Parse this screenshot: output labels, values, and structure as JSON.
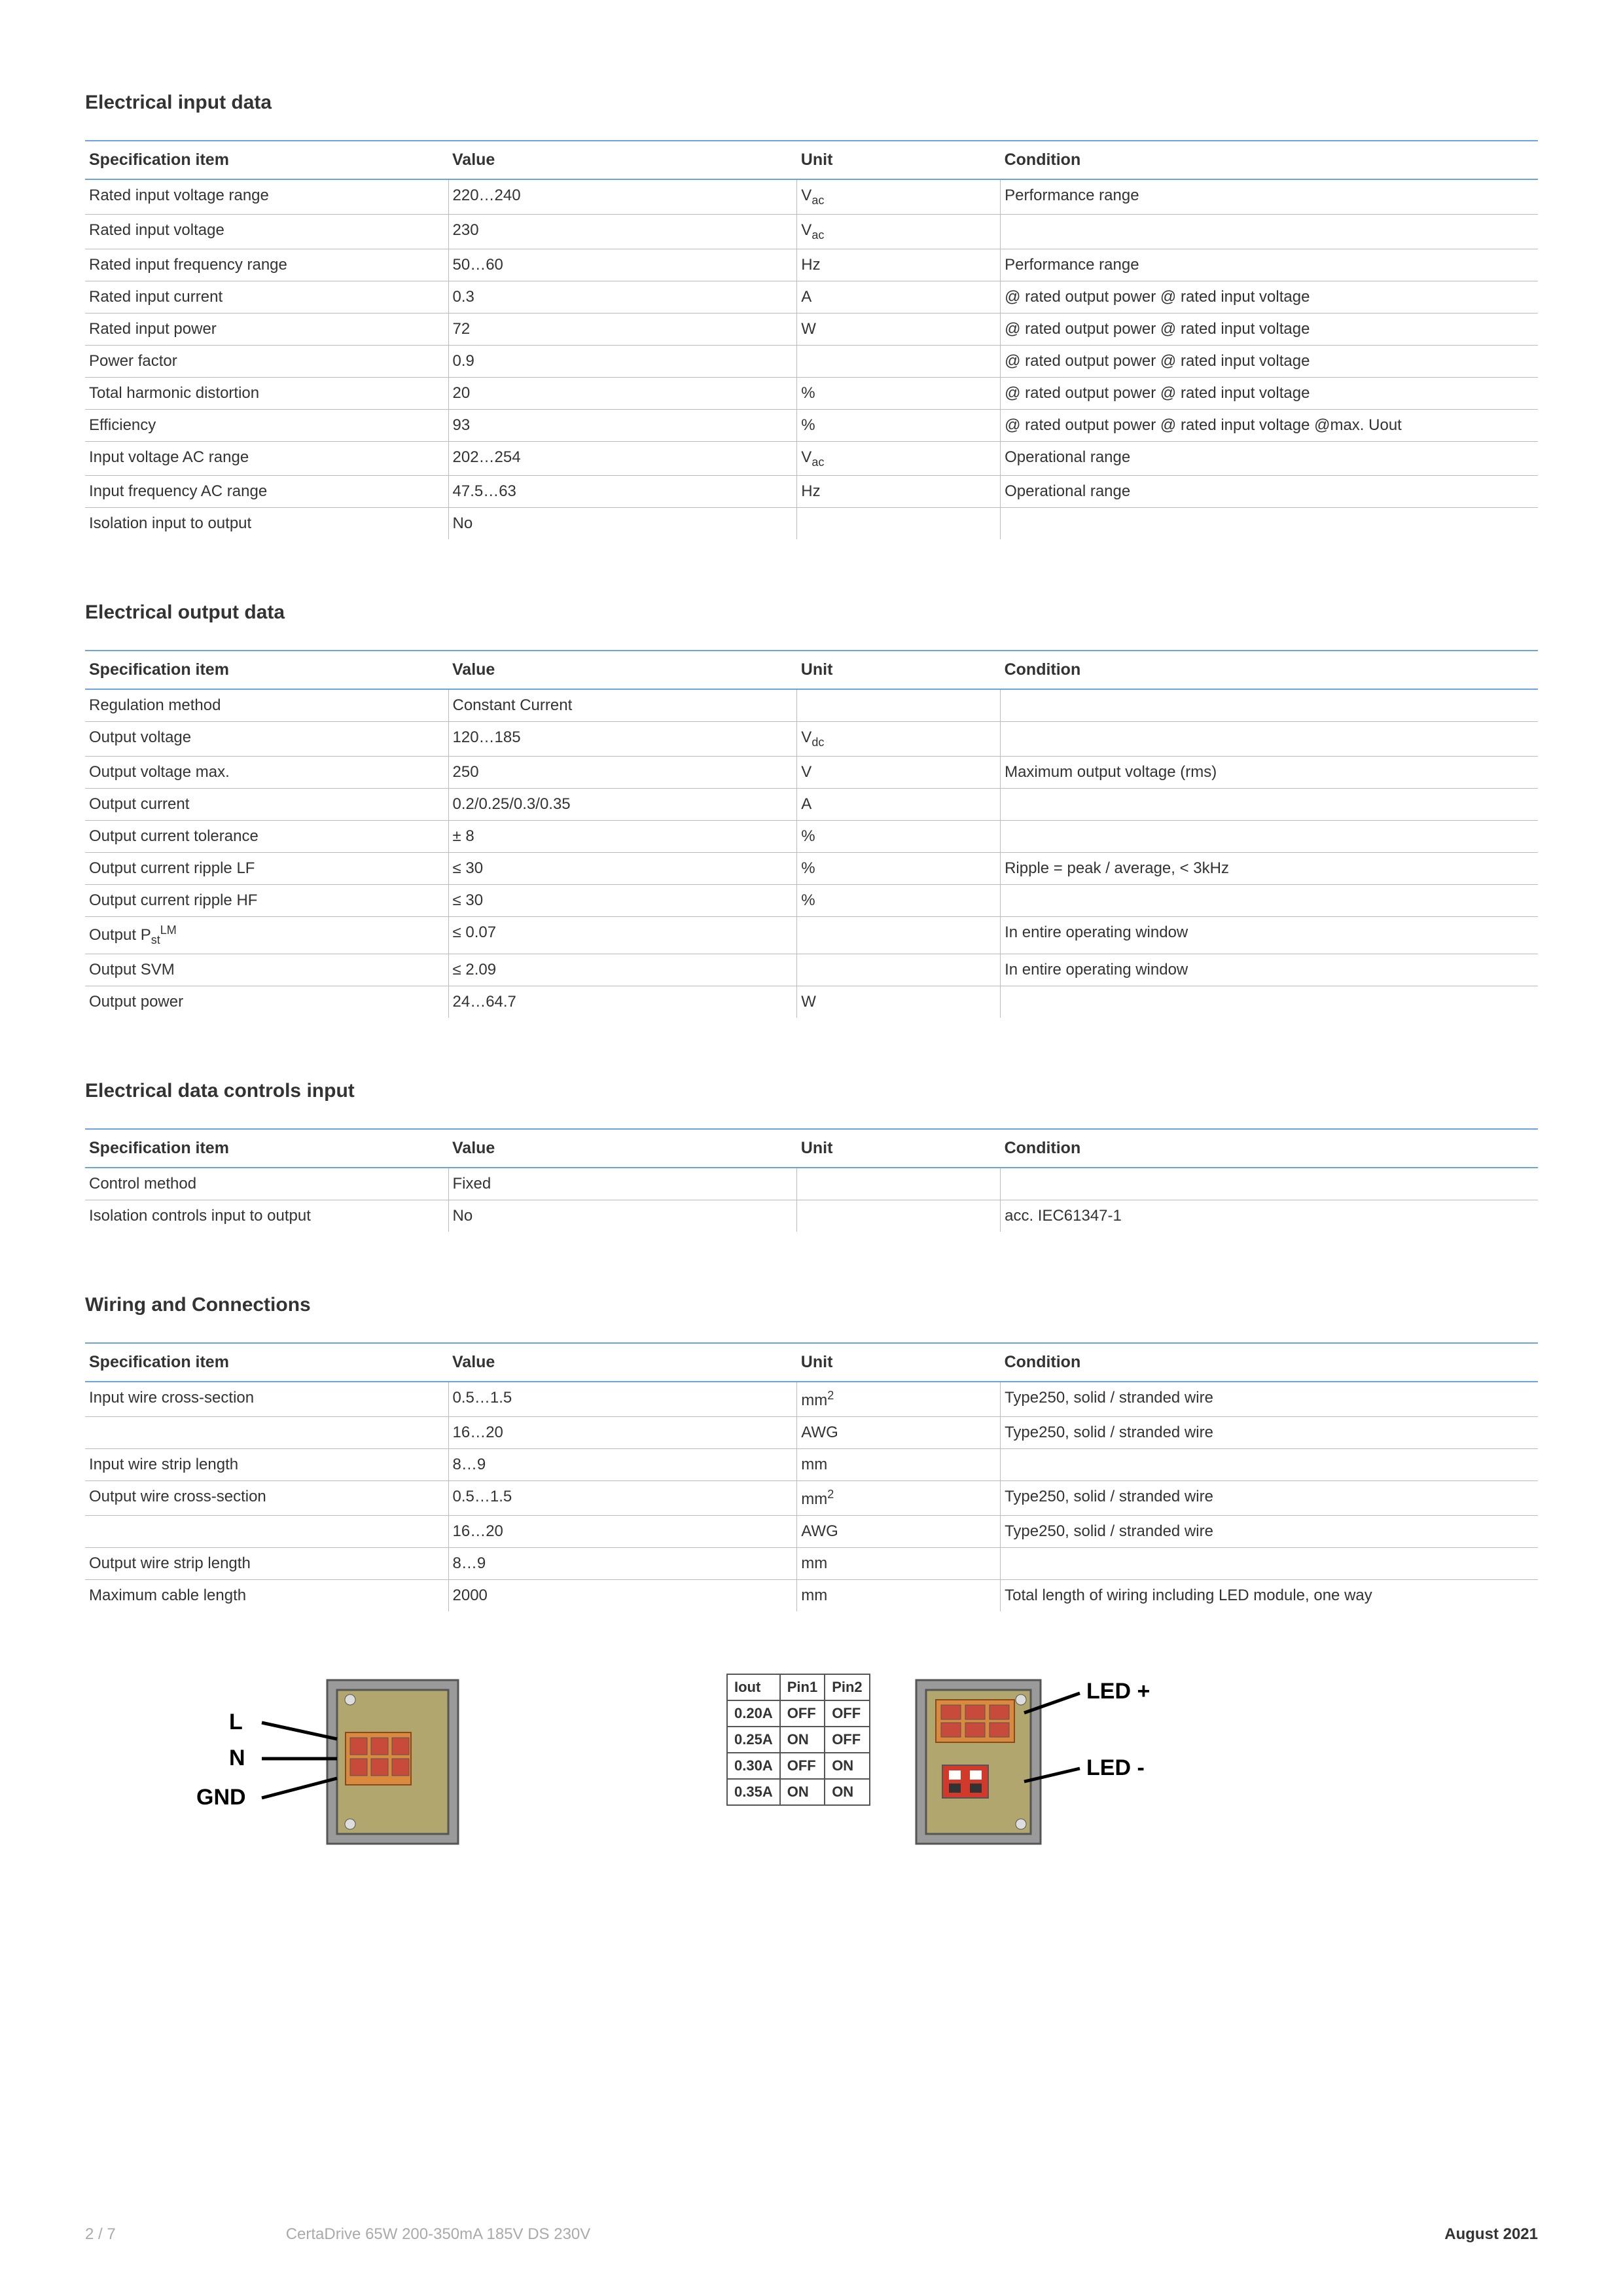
{
  "sections": [
    {
      "title": "Electrical input data",
      "headers": [
        "Specification item",
        "Value",
        "Unit",
        "Condition"
      ],
      "rows": [
        [
          "Rated input voltage range",
          "220…240",
          "V<sub>ac</sub>",
          "Performance range"
        ],
        [
          "Rated input voltage",
          "230",
          "V<sub>ac</sub>",
          ""
        ],
        [
          "Rated input frequency range",
          "50…60",
          "Hz",
          "Performance range"
        ],
        [
          "Rated input current",
          "0.3",
          "A",
          "@ rated output power @ rated input voltage"
        ],
        [
          "Rated input power",
          "72",
          "W",
          "@ rated output power @ rated input voltage"
        ],
        [
          "Power factor",
          "0.9",
          "",
          "@ rated output power @ rated input voltage"
        ],
        [
          "Total harmonic distortion",
          "20",
          "%",
          "@ rated output power @ rated input voltage"
        ],
        [
          "Efficiency",
          "93",
          "%",
          "@ rated output power @ rated input voltage  @max. Uout"
        ],
        [
          "Input voltage AC range",
          "202…254",
          "V<sub>ac</sub>",
          "Operational range"
        ],
        [
          "Input frequency AC range",
          "47.5…63",
          "Hz",
          "Operational range"
        ],
        [
          "Isolation input to output",
          "No",
          "",
          ""
        ]
      ]
    },
    {
      "title": "Electrical output data",
      "headers": [
        "Specification item",
        "Value",
        "Unit",
        "Condition"
      ],
      "rows": [
        [
          "Regulation method",
          "Constant Current",
          "",
          ""
        ],
        [
          "Output voltage",
          "120…185",
          "V<sub>dc</sub>",
          ""
        ],
        [
          "Output voltage max.",
          "250",
          "V",
          "Maximum output voltage (rms)"
        ],
        [
          "Output current",
          "0.2/0.25/0.3/0.35",
          "A",
          ""
        ],
        [
          "Output current tolerance",
          "± 8",
          "%",
          ""
        ],
        [
          "Output current ripple LF",
          "≤ 30",
          "%",
          "Ripple = peak / average, < 3kHz"
        ],
        [
          "Output current ripple HF",
          "≤ 30",
          "%",
          ""
        ],
        [
          "Output P<sub>st</sub><sup>LM</sup>",
          "≤ 0.07",
          "",
          "In entire operating window"
        ],
        [
          "Output SVM",
          "≤ 2.09",
          "",
          "In entire operating window"
        ],
        [
          "Output power",
          "24…64.7",
          "W",
          ""
        ]
      ]
    },
    {
      "title": "Electrical data controls input",
      "headers": [
        "Specification item",
        "Value",
        "Unit",
        "Condition"
      ],
      "rows": [
        [
          "Control method",
          "Fixed",
          "",
          ""
        ],
        [
          "Isolation controls input to output",
          "No",
          "",
          "acc. IEC61347-1"
        ]
      ]
    },
    {
      "title": "Wiring and Connections",
      "headers": [
        "Specification item",
        "Value",
        "Unit",
        "Condition"
      ],
      "rows": [
        [
          "Input wire cross-section",
          "0.5…1.5",
          "mm²",
          "Type250, solid / stranded wire"
        ],
        [
          "",
          "16…20",
          "AWG",
          "Type250, solid / stranded wire"
        ],
        [
          "Input wire strip length",
          "8…9",
          "mm",
          ""
        ],
        [
          "Output wire cross-section",
          "0.5…1.5",
          "mm²",
          "Type250, solid / stranded wire"
        ],
        [
          "",
          "16…20",
          "AWG",
          "Type250, solid / stranded wire"
        ],
        [
          "Output wire strip length",
          "8…9",
          "mm",
          ""
        ],
        [
          "Maximum cable length",
          "2000",
          "mm",
          "Total length of wiring including LED module, one way"
        ]
      ]
    }
  ],
  "wiring_labels": {
    "l": "L",
    "n": "N",
    "gnd": "GND"
  },
  "dip": {
    "headers": [
      "Iout",
      "Pin1",
      "Pin2"
    ],
    "rows": [
      [
        "0.20A",
        "OFF",
        "OFF"
      ],
      [
        "0.25A",
        "ON",
        "OFF"
      ],
      [
        "0.30A",
        "OFF",
        "ON"
      ],
      [
        "0.35A",
        "ON",
        "ON"
      ]
    ]
  },
  "led_labels": {
    "plus": "LED +",
    "minus": "LED -"
  },
  "footer": {
    "page": "2 / 7",
    "title": "CertaDrive 65W 200-350mA 185V DS 230V",
    "date": "August 2021"
  },
  "colors": {
    "header_rule": "#6aa4d9",
    "row_rule": "#bbbbbb",
    "body_bg": "#b1a66e",
    "connector_orange": "#d98a3e",
    "connector_red": "#c74a3a",
    "dip_red": "#d13a2a",
    "gray": "#9a9a9a",
    "outline": "#555555"
  }
}
